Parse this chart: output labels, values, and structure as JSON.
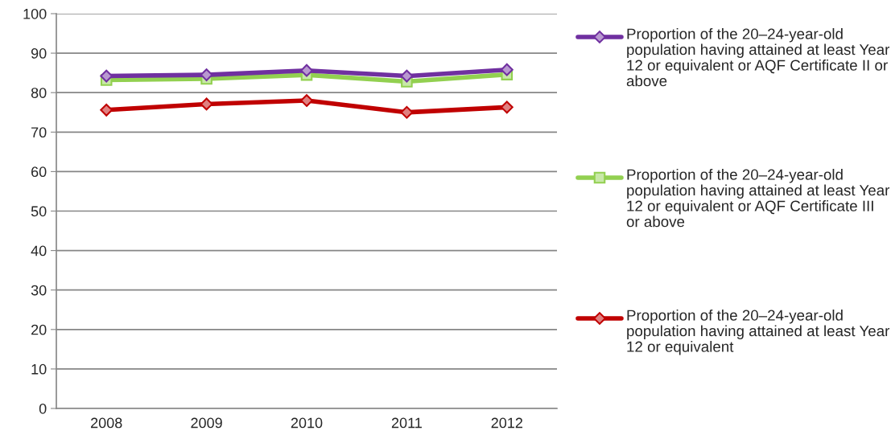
{
  "chart_data": {
    "type": "line",
    "categories": [
      "2008",
      "2009",
      "2010",
      "2011",
      "2012"
    ],
    "series": [
      {
        "name": "Proportion of the 20–24-year-old population having attained at least Year 12 or equivalent or AQF Certificate II or above",
        "color": "#7030a0",
        "marker": "diamond",
        "values": [
          84.2,
          84.5,
          85.6,
          84.2,
          85.8
        ]
      },
      {
        "name": "Proportion of the 20–24-year-old population having attained at least Year 12 or equivalent or AQF Certificate III or above",
        "color": "#92d050",
        "marker": "square",
        "values": [
          83.2,
          83.5,
          84.5,
          82.8,
          84.6
        ]
      },
      {
        "name": "Proportion of the 20–24-year-old population having attained at least Year 12 or equivalent",
        "color": "#c00000",
        "marker": "diamond",
        "values": [
          75.6,
          77.1,
          78.0,
          75.0,
          76.3
        ]
      }
    ],
    "ylim": [
      0,
      100
    ],
    "yticks": [
      0,
      10,
      20,
      30,
      40,
      50,
      60,
      70,
      80,
      90,
      100
    ],
    "grid": "y",
    "legend": "right",
    "line_style": "solid"
  }
}
